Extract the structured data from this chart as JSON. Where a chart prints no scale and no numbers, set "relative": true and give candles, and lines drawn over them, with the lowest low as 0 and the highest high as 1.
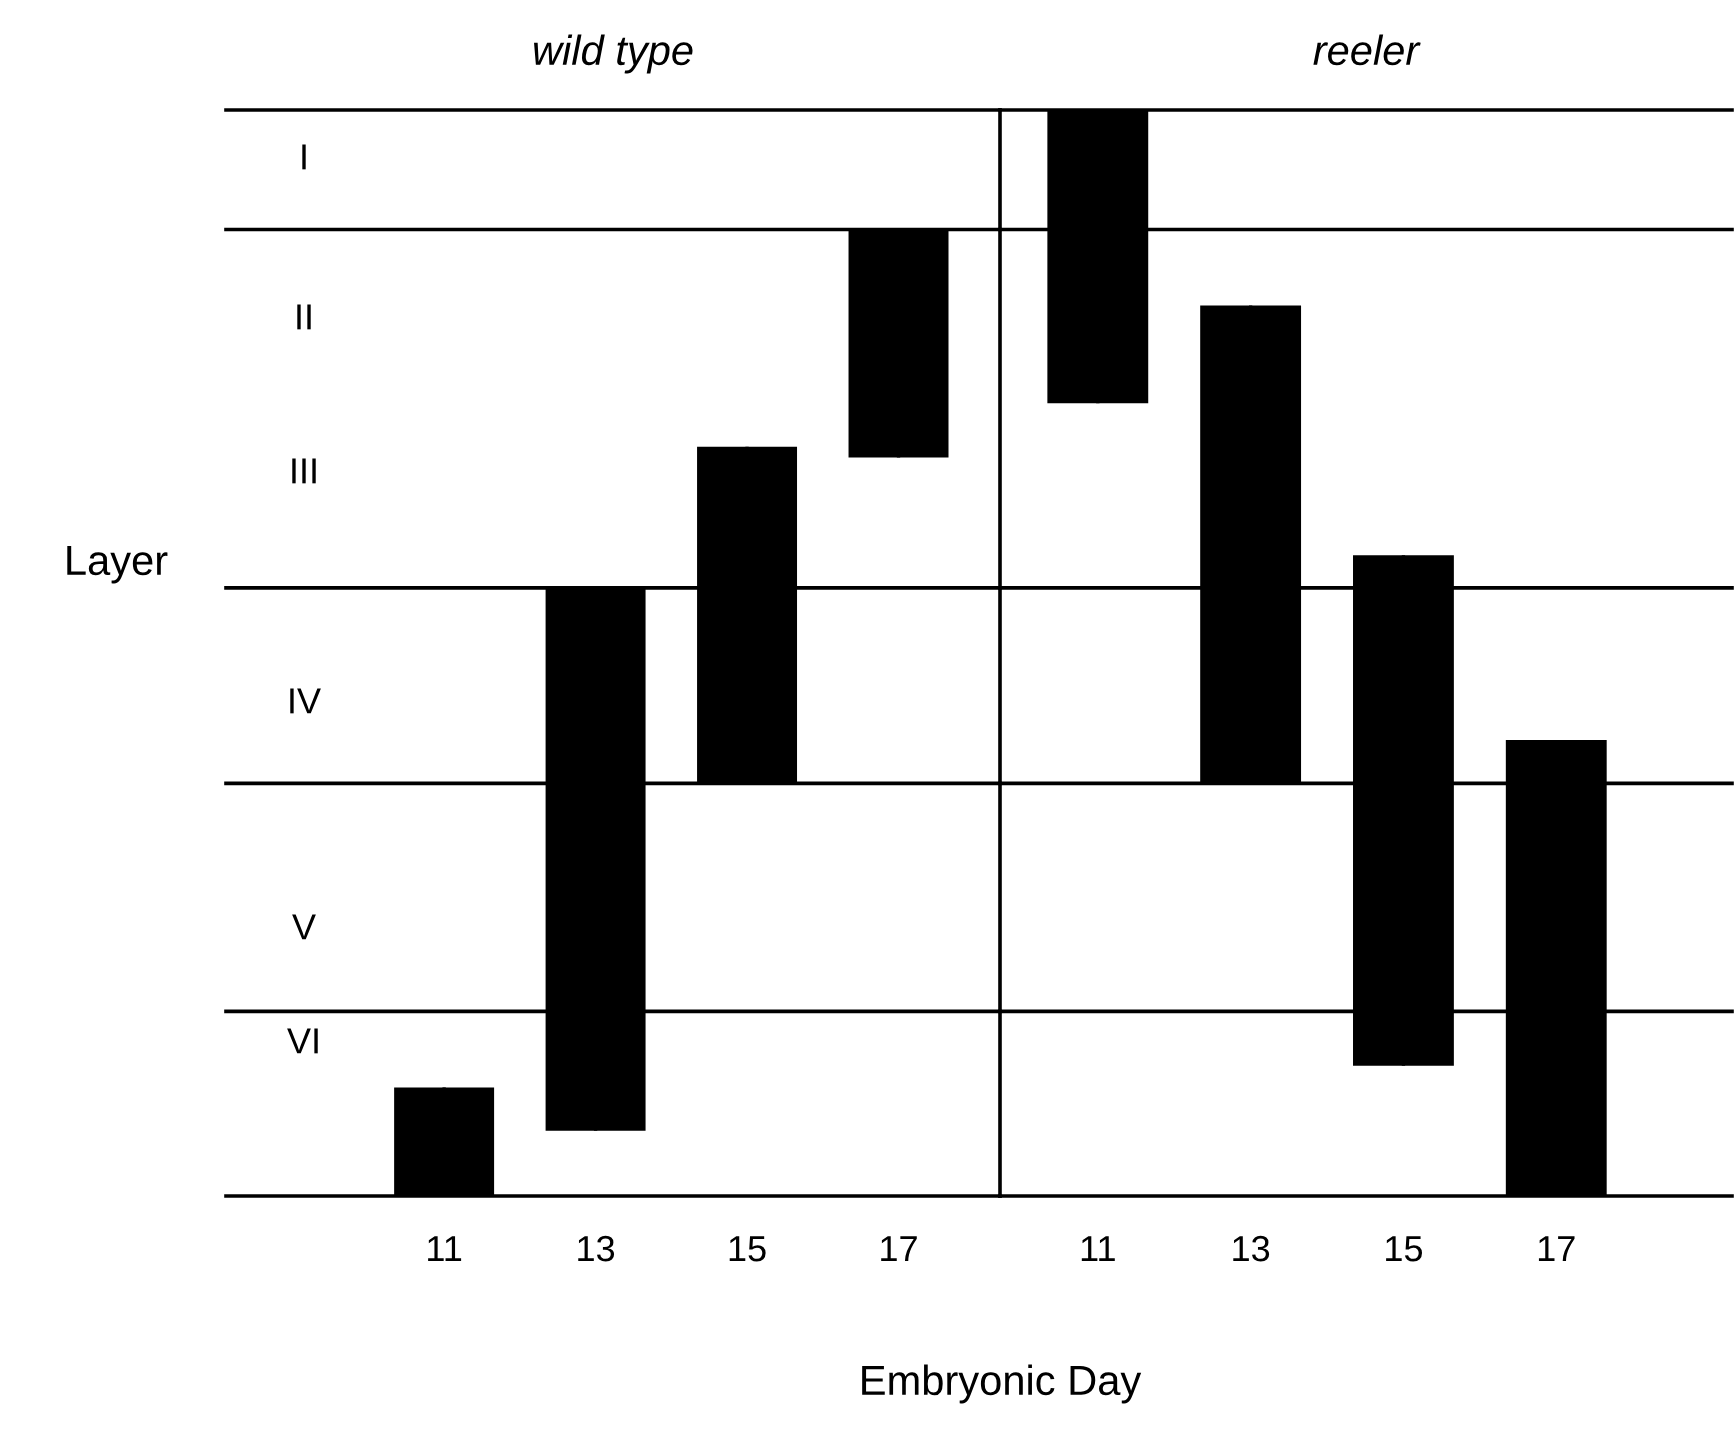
{
  "chart_data": {
    "type": "candlestick",
    "xlabel": "Embryonic Day",
    "ylabel": "Layer",
    "relative": true,
    "tick_labels": "x",
    "legend": false,
    "categories": [
      "11",
      "13",
      "15",
      "17",
      "11",
      "13",
      "15",
      "17"
    ],
    "ohlc": [
      [
        0,
        0.1,
        0,
        0.1
      ],
      [
        0.06,
        0.56,
        0.06,
        0.56
      ],
      [
        0.38,
        0.69,
        0.38,
        0.69
      ],
      [
        0.68,
        0.89,
        0.68,
        0.89
      ],
      [
        0.73,
        1,
        0.73,
        1
      ],
      [
        0.38,
        0.82,
        0.38,
        0.82
      ],
      [
        0.12,
        0.59,
        0.12,
        0.59
      ],
      [
        0,
        0.42,
        0,
        0.42
      ]
    ],
    "color": "#000000",
    "annotations": [
      "wild type",
      "reeler",
      "I",
      "II",
      "III",
      "IV",
      "V",
      "VI"
    ],
    "ref_lines": [
      {
        "axis": "y",
        "value": 0.17
      },
      {
        "axis": "y",
        "value": 0.38
      },
      {
        "axis": "y",
        "value": 0.56
      },
      {
        "axis": "y",
        "value": 0.89
      },
      {
        "axis": "y",
        "value": 1
      }
    ]
  }
}
